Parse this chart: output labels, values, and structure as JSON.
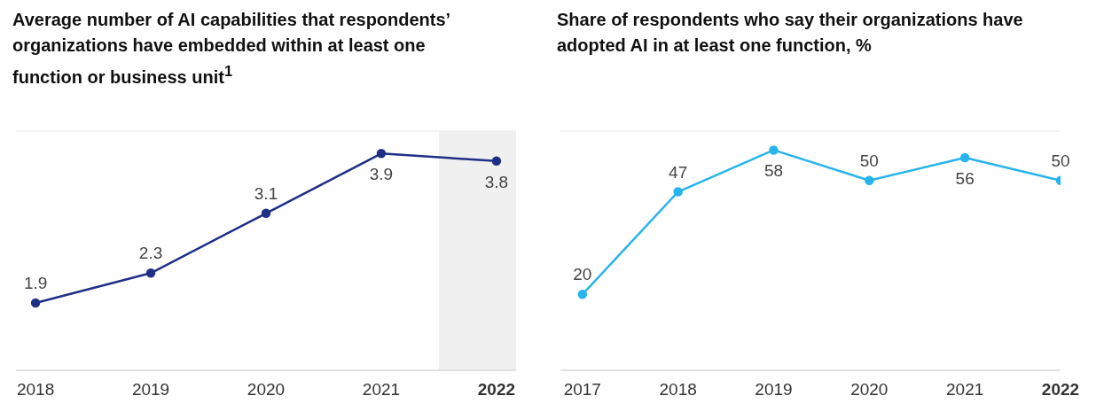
{
  "chart_data": [
    {
      "type": "line",
      "title": "Average number of AI capabilities that respondents’ organizations have embedded within at least one function or business unit$^{1}$",
      "x": [
        2018,
        2019,
        2020,
        2021,
        2022
      ],
      "xlim": [
        2017.83,
        2022.17
      ],
      "xticks": [
        2018,
        2019,
        2020,
        2021,
        2022
      ],
      "ylim": [
        1,
        4.2
      ],
      "tick_labels": "x",
      "grid": "y",
      "marker": "circle",
      "data_labels": true,
      "series": [
        {
          "color": "#1f2f86",
          "values": [
            1.9,
            2.3,
            3.1,
            3.9,
            3.8
          ]
        }
      ],
      "bands": [
        {
          "axis": "x",
          "from": 2021.5,
          "to": 2022.17,
          "color": "#f0f0f0"
        }
      ]
    },
    {
      "type": "line",
      "title": "Share of respondents who say their organizations have adopted AI in at least one function, %",
      "x": [
        2017,
        2018,
        2019,
        2020,
        2021,
        2022
      ],
      "xlim": [
        2016.77,
        2022
      ],
      "xticks": [
        2017,
        2018,
        2019,
        2020,
        2021,
        2022
      ],
      "ylim": [
        0,
        63
      ],
      "tick_labels": "x",
      "grid": "y",
      "marker": "circle",
      "data_labels": true,
      "series": [
        {
          "color": "#27b4ec",
          "values": [
            20,
            47,
            58,
            50,
            56,
            50
          ]
        }
      ]
    }
  ]
}
